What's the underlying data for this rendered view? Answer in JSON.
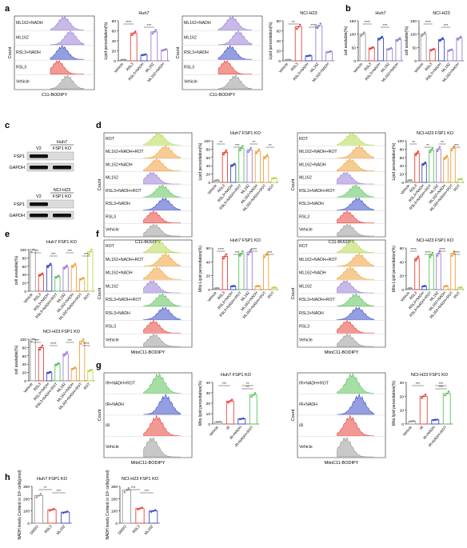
{
  "colors": {
    "red": "#e8463c",
    "blue": "#3d4ec7",
    "purple": "#9b7fd6",
    "green": "#5cc25c",
    "orange": "#f0a33c",
    "lime": "#b8d94e",
    "gray": "#9a9a9a",
    "peach": "#f6c48b"
  },
  "panels": {
    "a": {
      "label": "a",
      "flow_huh7": {
        "labels": [
          "ML162+NADH",
          "ML162",
          "RSL3+NADH",
          "RSL3",
          "Vehicle"
        ],
        "ylabel": "Count",
        "xlabel": "C11-BODIPY",
        "colors": [
          "purple",
          "purple",
          "blue",
          "red",
          "gray"
        ]
      },
      "bar_huh7": {
        "title": "Huh7",
        "ylabel": "Lipid peroxidation(%)",
        "yticks": [
          "0",
          "20",
          "40",
          "60",
          "80"
        ],
        "ymax": 80,
        "categories": [
          "Vehicle",
          "RSL3",
          "RSL3+NADH",
          "ML162",
          "ML162+NADH"
        ],
        "values": [
          2,
          55,
          12,
          58,
          22
        ],
        "colors": [
          "gray",
          "red",
          "blue",
          "purple",
          "purple"
        ],
        "sig": [
          "****",
          "***"
        ]
      },
      "flow_h23": {
        "labels": [
          "ML162+NADH",
          "ML162",
          "RSL3+NADH",
          "RSL3",
          "Vehicle"
        ],
        "ylabel": "Count",
        "xlabel": "C11-BODIPY",
        "colors": [
          "purple",
          "purple",
          "blue",
          "red",
          "gray"
        ]
      },
      "bar_h23": {
        "title": "NCI-H23",
        "ylabel": "Lipid peroxidation(%)",
        "yticks": [
          "0",
          "20",
          "40",
          "60",
          "80"
        ],
        "ymax": 80,
        "categories": [
          "Vehicle",
          "RSL3",
          "RSL3+NADH",
          "ML162",
          "ML162+NADH"
        ],
        "values": [
          2,
          68,
          10,
          70,
          18
        ],
        "colors": [
          "gray",
          "red",
          "blue",
          "purple",
          "purple"
        ],
        "sig": [
          "**",
          "****"
        ]
      }
    },
    "b": {
      "label": "b",
      "bar_huh7": {
        "title": "Huh7",
        "ylabel": "cell available(%)",
        "yticks": [
          "0",
          "50",
          "100",
          "150"
        ],
        "ymax": 150,
        "categories": [
          "Vehicle",
          "RSL3",
          "RSL3+NADH",
          "ML162",
          "ML162+NADH"
        ],
        "values": [
          100,
          48,
          85,
          45,
          80
        ],
        "colors": [
          "gray",
          "red",
          "blue",
          "purple",
          "purple"
        ],
        "sig": [
          "****",
          "***"
        ]
      },
      "bar_h23": {
        "title": "NCI-H23",
        "ylabel": "cell available(%)",
        "yticks": [
          "0",
          "50",
          "100",
          "150"
        ],
        "ymax": 150,
        "categories": [
          "Vehicle",
          "RSL3",
          "RSL3+NADH",
          "ML162",
          "ML162+NADH"
        ],
        "values": [
          100,
          42,
          80,
          40,
          85
        ],
        "colors": [
          "gray",
          "red",
          "blue",
          "purple",
          "purple"
        ],
        "sig": [
          "****",
          "***"
        ]
      }
    },
    "c": {
      "label": "c",
      "huh7": {
        "title": "Huh7",
        "lanes": [
          "V2",
          "FSP1 KO"
        ],
        "rows": [
          "FSP1",
          "GAPDH"
        ]
      },
      "h23": {
        "title": "NCI-H23",
        "lanes": [
          "V2",
          "FSP1 KO"
        ],
        "rows": [
          "FSP1",
          "GAPDH"
        ]
      }
    },
    "d": {
      "label": "d",
      "flow_huh7": {
        "labels": [
          "ROT",
          "ML162+NADH+ROT",
          "ML162+NADH",
          "ML162",
          "RSL3+NADH+ROT",
          "RSL3+NADH",
          "RSL3",
          "Vehicle"
        ],
        "ylabel": "Count",
        "xlabel": "C11-BODIPY",
        "colors": [
          "lime",
          "orange",
          "orange",
          "purple",
          "green",
          "blue",
          "red",
          "gray"
        ]
      },
      "bar_huh7": {
        "title": "Huh7 FSP1 KO",
        "ylabel": "Lipid peroxidation(%)",
        "yticks": [
          "0",
          "20",
          "40",
          "60",
          "80",
          "100"
        ],
        "ymax": 100,
        "categories": [
          "Vehicle",
          "RSL3",
          "RSL3+NADH",
          "RSL3+NADH+ROT",
          "ML162",
          "ML162+NADH",
          "ML162+NADH+ROT",
          "ROT"
        ],
        "values": [
          5,
          72,
          42,
          82,
          78,
          75,
          62,
          10
        ],
        "colors": [
          "gray",
          "red",
          "blue",
          "green",
          "purple",
          "orange",
          "orange",
          "lime"
        ],
        "sig": [
          "**",
          "***",
          "**",
          "**"
        ]
      },
      "flow_h23": {
        "labels": [
          "ROT",
          "ML162+NADH+ROT",
          "ML162+NADH",
          "ML162",
          "RSL3+NADH+ROT",
          "RSL3+NADH",
          "RSL3",
          "Vehicle"
        ],
        "ylabel": "Count",
        "xlabel": "C11-BODIPY",
        "colors": [
          "lime",
          "orange",
          "orange",
          "purple",
          "green",
          "blue",
          "red",
          "gray"
        ]
      },
      "bar_h23": {
        "title": "NCI-H23 FSP1 KO",
        "ylabel": "Lipid peroxidation(%)",
        "yticks": [
          "0",
          "20",
          "40",
          "60",
          "80",
          "100"
        ],
        "ymax": 100,
        "categories": [
          "Vehicle",
          "RSL3",
          "RSL3+NADH",
          "RSL3+NADH+ROT",
          "ML162",
          "ML162+NADH",
          "ML162+NADH+ROT",
          "ROT"
        ],
        "values": [
          5,
          70,
          45,
          78,
          80,
          60,
          82,
          8
        ],
        "colors": [
          "gray",
          "red",
          "blue",
          "green",
          "purple",
          "orange",
          "orange",
          "lime"
        ],
        "sig": [
          "**",
          "**",
          "**",
          "***"
        ]
      }
    },
    "e": {
      "label": "e",
      "bar_huh7": {
        "title": "Huh7 FSP1 KO",
        "ylabel": "cell available(%)",
        "yticks": [
          "0",
          "20",
          "40",
          "60",
          "80",
          "100"
        ],
        "ymax": 100,
        "categories": [
          "Vehicle",
          "RSL3",
          "RSL3+NADH",
          "RSL3+NADH+ROT",
          "ML162",
          "ML162+NADH",
          "ML162+NADH+ROT",
          "ROT"
        ],
        "values": [
          100,
          40,
          62,
          35,
          58,
          62,
          30,
          95
        ],
        "colors": [
          "gray",
          "red",
          "blue",
          "green",
          "purple",
          "orange",
          "orange",
          "lime"
        ],
        "sig": [
          "**",
          "***",
          "***",
          "***"
        ]
      },
      "bar_h23": {
        "title": "NCI-H23 FSP1 KO",
        "ylabel": "cell available(%)",
        "yticks": [
          "0",
          "20",
          "40",
          "60",
          "80",
          "100"
        ],
        "ymax": 100,
        "categories": [
          "Vehicle",
          "RSL3",
          "RSL3+NADH",
          "RSL3+NADH+ROT",
          "ML162",
          "ML162+NADH",
          "ML162+NADH+ROT",
          "ROT"
        ],
        "values": [
          100,
          80,
          20,
          40,
          65,
          30,
          95,
          25
        ],
        "colors": [
          "gray",
          "red",
          "blue",
          "green",
          "purple",
          "orange",
          "orange",
          "lime"
        ],
        "sig": [
          "***",
          "****",
          "***",
          "****"
        ]
      }
    },
    "f": {
      "label": "f",
      "flow_huh7": {
        "labels": [
          "ROT",
          "ML162+NADH+ROT",
          "ML162+NADH",
          "ML162",
          "RSL3+NADH+ROT",
          "RSL3+NADH",
          "RSL3",
          "Vehicle"
        ],
        "ylabel": "Count",
        "xlabel": "MitoC11-BODIPY",
        "colors": [
          "lime",
          "orange",
          "orange",
          "purple",
          "green",
          "blue",
          "red",
          "gray"
        ]
      },
      "bar_huh7": {
        "title": "Huh7 FSP1 KO",
        "ylabel": "Mito Lipid peroxidation(%)",
        "yticks": [
          "0",
          "20",
          "40",
          "60"
        ],
        "ymax": 60,
        "categories": [
          "Vehicle",
          "RSL3",
          "RSL3+NADH",
          "RSL3+NADH+ROT",
          "ML162",
          "ML162+NADH",
          "ML162+NADH+ROT",
          "ROT"
        ],
        "values": [
          2,
          48,
          5,
          52,
          54,
          5,
          50,
          3
        ],
        "colors": [
          "gray",
          "red",
          "blue",
          "green",
          "purple",
          "orange",
          "orange",
          "lime"
        ],
        "sig": [
          "****",
          "***",
          "****",
          "***"
        ]
      },
      "flow_h23": {
        "labels": [
          "ROT",
          "ML162+NADH+ROT",
          "ML162+NADH",
          "ML162",
          "RSL3+NADH+ROT",
          "RSL3+NADH",
          "RSL3",
          "Vehicle"
        ],
        "ylabel": "Count",
        "xlabel": "MitoC11-BODIPY",
        "colors": [
          "lime",
          "orange",
          "orange",
          "purple",
          "green",
          "blue",
          "red",
          "gray"
        ]
      },
      "bar_h23": {
        "title": "NCI-H23  FSP1 KO",
        "ylabel": "Mito Lipid peroxidation(%)",
        "yticks": [
          "0",
          "20",
          "40",
          "60"
        ],
        "ymax": 60,
        "categories": [
          "Vehicle",
          "RSL3",
          "RSL3+NADH",
          "RSL3+NADH+ROT",
          "ML162",
          "ML162+NADH",
          "ML162+NADH+ROT",
          "ROT"
        ],
        "values": [
          2,
          45,
          5,
          50,
          52,
          5,
          52,
          3
        ],
        "colors": [
          "gray",
          "red",
          "blue",
          "green",
          "purple",
          "orange",
          "orange",
          "lime"
        ],
        "sig": [
          "****",
          "****",
          "****",
          "****"
        ]
      }
    },
    "g": {
      "label": "g",
      "flow_huh7": {
        "labels": [
          "IR+NADH+ROT",
          "IR+NADH",
          "IR",
          "Vehicle"
        ],
        "ylabel": "Count",
        "xlabel": "MitoC11-BODIPY",
        "colors": [
          "green",
          "blue",
          "red",
          "gray"
        ]
      },
      "bar_huh7": {
        "title": "Huh7 FSP1 KO",
        "ylabel": "Mito lipid peroxidation(%)",
        "yticks": [
          "0",
          "10",
          "20",
          "30",
          "40"
        ],
        "ymax": 40,
        "categories": [
          "Vehicle",
          "IR",
          "IR+NADH",
          "IR+NADH+ROT"
        ],
        "values": [
          2,
          22,
          5,
          28
        ],
        "colors": [
          "gray",
          "red",
          "blue",
          "green"
        ],
        "sig": [
          "***",
          "**",
          "**"
        ]
      },
      "flow_h23": {
        "labels": [
          "IR+NADH+ROT",
          "IR+NADH",
          "IR",
          "Vehicle"
        ],
        "ylabel": "Count",
        "xlabel": "MitoC11-BODIPY",
        "colors": [
          "green",
          "blue",
          "red",
          "gray"
        ]
      },
      "bar_h23": {
        "title": "NCI-H23 FSP1 KO",
        "ylabel": "Mito lipid peroxidation(%)",
        "yticks": [
          "0",
          "10",
          "20",
          "30"
        ],
        "ymax": 30,
        "categories": [
          "Vehicle",
          "IR",
          "IR+NADH",
          "IR+NADH+ROT"
        ],
        "values": [
          2,
          20,
          3,
          22
        ],
        "colors": [
          "gray",
          "red",
          "blue",
          "green"
        ],
        "sig": [
          "***",
          "***",
          "***"
        ]
      }
    },
    "h": {
      "label": "h",
      "bar_huh7": {
        "title": "Huh7 FSP1 KO",
        "ylabel": "NADH levels Content in 10⁶ cells(pmol)",
        "yticks": [
          "0",
          "100",
          "200",
          "300"
        ],
        "ymax": 300,
        "categories": [
          "DMSO",
          "RSL3",
          "ML162"
        ],
        "values": [
          225,
          110,
          90
        ],
        "colors": [
          "gray",
          "red",
          "blue"
        ],
        "sig": [
          "**",
          "***"
        ]
      },
      "bar_h23": {
        "title": "NCI-H23 FSP1 KO",
        "ylabel": "NADH levels Content in 10⁶ cells(pmol)",
        "yticks": [
          "0",
          "100",
          "200",
          "300"
        ],
        "ymax": 300,
        "categories": [
          "DMSO",
          "RSL3",
          "ML162"
        ],
        "values": [
          270,
          120,
          100
        ],
        "colors": [
          "gray",
          "red",
          "blue"
        ],
        "sig": [
          "***",
          "***"
        ]
      }
    }
  }
}
